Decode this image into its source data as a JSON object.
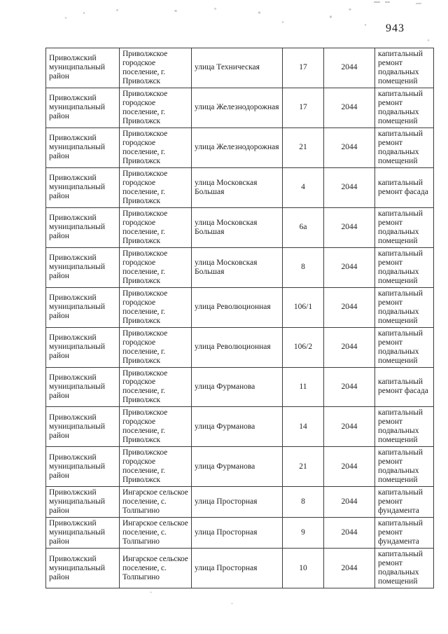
{
  "page": {
    "number": "943"
  },
  "table": {
    "column_keys": [
      "district",
      "settlement",
      "street",
      "house",
      "year",
      "work"
    ],
    "rows": [
      {
        "district": "Приволжский муниципальный район",
        "settlement": "Приволжское городское поселение, г. Приволжск",
        "street": "улица Техническая",
        "house": "17",
        "year": "2044",
        "work": "капитальный ремонт подвальных помещений"
      },
      {
        "district": "Приволжский муниципальный район",
        "settlement": "Приволжское городское поселение, г. Приволжск",
        "street": "улица Железнодорожная",
        "house": "17",
        "year": "2044",
        "work": "капитальный ремонт подвальных помещений"
      },
      {
        "district": "Приволжский муниципальный район",
        "settlement": "Приволжское городское поселение, г. Приволжск",
        "street": "улица Железнодорожная",
        "house": "21",
        "year": "2044",
        "work": "капитальный ремонт подвальных помещений"
      },
      {
        "district": "Приволжский муниципальный район",
        "settlement": "Приволжское городское поселение, г. Приволжск",
        "street": "улица Московская Большая",
        "house": "4",
        "year": "2044",
        "work": "капитальный ремонт фасада"
      },
      {
        "district": "Приволжский муниципальный район",
        "settlement": "Приволжское городское поселение, г. Приволжск",
        "street": "улица Московская Большая",
        "house": "6а",
        "year": "2044",
        "work": "капитальный ремонт подвальных помещений"
      },
      {
        "district": "Приволжский муниципальный район",
        "settlement": "Приволжское городское поселение, г. Приволжск",
        "street": "улица Московская Большая",
        "house": "8",
        "year": "2044",
        "work": "капитальный ремонт подвальных помещений"
      },
      {
        "district": "Приволжский муниципальный район",
        "settlement": "Приволжское городское поселение, г. Приволжск",
        "street": "улица Революционная",
        "house": "106/1",
        "year": "2044",
        "work": "капитальный ремонт подвальных помещений"
      },
      {
        "district": "Приволжский муниципальный район",
        "settlement": "Приволжское городское поселение, г. Приволжск",
        "street": "улица Революционная",
        "house": "106/2",
        "year": "2044",
        "work": "капитальный ремонт подвальных помещений"
      },
      {
        "district": "Приволжский муниципальный район",
        "settlement": "Приволжское городское поселение, г. Приволжск",
        "street": "улица Фурманова",
        "house": "11",
        "year": "2044",
        "work": "капитальный ремонт фасада"
      },
      {
        "district": "Приволжский муниципальный район",
        "settlement": "Приволжское городское поселение, г. Приволжск",
        "street": "улица Фурманова",
        "house": "14",
        "year": "2044",
        "work": "капитальный ремонт подвальных помещений"
      },
      {
        "district": "Приволжский муниципальный район",
        "settlement": "Приволжское городское поселение, г. Приволжск",
        "street": "улица Фурманова",
        "house": "21",
        "year": "2044",
        "work": "капитальный ремонт подвальных помещений"
      },
      {
        "district": "Приволжский муниципальный район",
        "settlement": "Ингарское сельское поселение, с. Толпыгино",
        "street": "улица Просторная",
        "house": "8",
        "year": "2044",
        "work": "капитальный ремонт фундамента"
      },
      {
        "district": "Приволжский муниципальный район",
        "settlement": "Ингарское сельское поселение, с. Толпыгино",
        "street": "улица Просторная",
        "house": "9",
        "year": "2044",
        "work": "капитальный ремонт фундамента"
      },
      {
        "district": "Приволжский муниципальный район",
        "settlement": "Ингарское сельское поселение, с. Толпыгино",
        "street": "улица Просторная",
        "house": "10",
        "year": "2044",
        "work": "капитальный ремонт подвальных помещений"
      }
    ]
  }
}
